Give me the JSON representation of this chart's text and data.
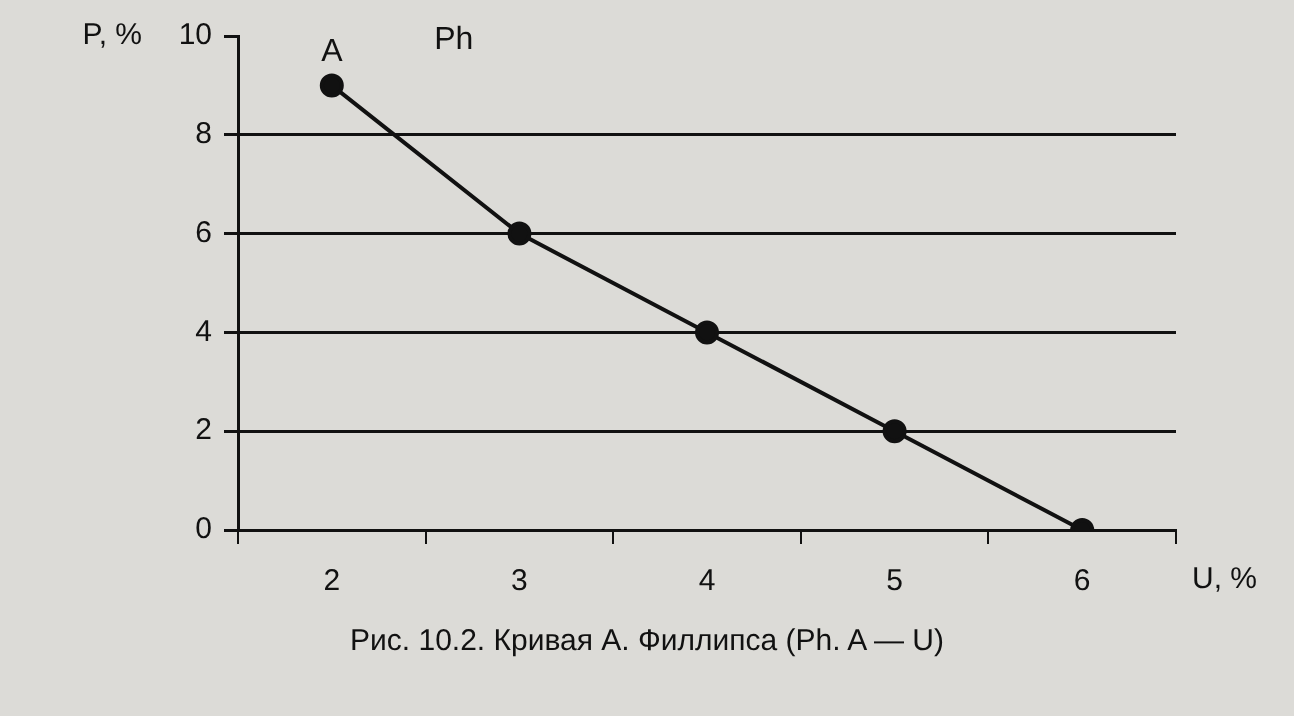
{
  "chart_data": {
    "type": "line",
    "xlabel": "U, %",
    "ylabel": "P, %",
    "x": [
      2,
      3,
      4,
      5,
      6
    ],
    "series": [
      {
        "color": "#111111",
        "values": [
          9,
          6,
          4,
          2,
          0
        ]
      }
    ],
    "xlim": [
      1.5,
      6.5
    ],
    "xticks": [
      {
        "value": 1.5,
        "label": null
      },
      2,
      {
        "value": 2.5,
        "label": null
      },
      3,
      {
        "value": 3.5,
        "label": null
      },
      4,
      {
        "value": 4.5,
        "label": null
      },
      5,
      {
        "value": 5.5,
        "label": null
      },
      6,
      {
        "value": 6.5,
        "label": null
      }
    ],
    "ylim": [
      0,
      10
    ],
    "yticks": [
      0,
      2,
      4,
      6,
      8,
      10
    ],
    "grid": "y",
    "marker": "circle",
    "line_style": "solid",
    "legend": false,
    "annotations": [
      {
        "text": "A",
        "x": 2,
        "y": 9
      },
      "Ph",
      "Рис. 10.2. Кривая А. Филлипса (Ph. A — U)"
    ]
  }
}
